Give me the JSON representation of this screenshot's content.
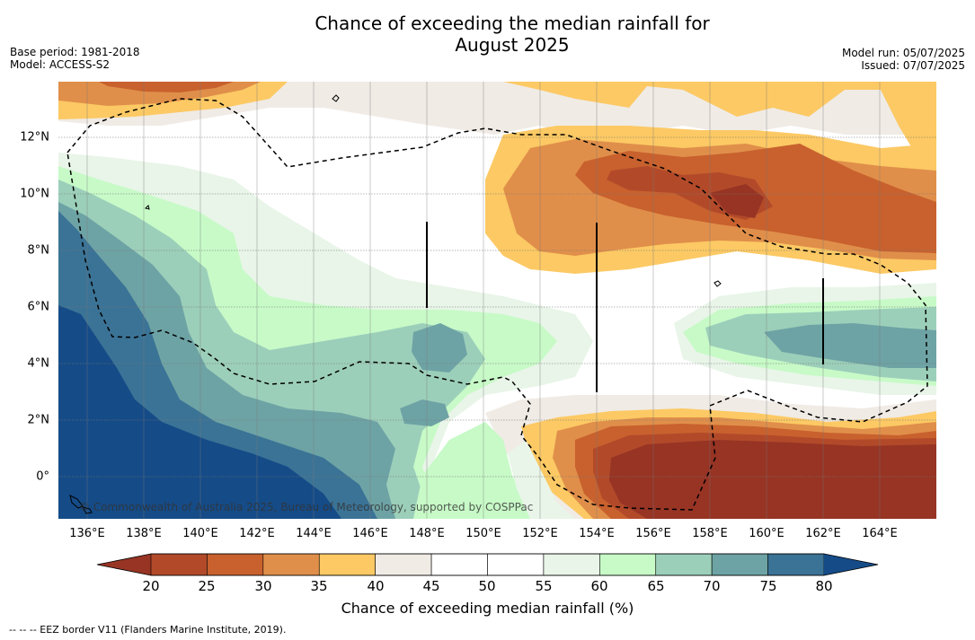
{
  "title_line1": "Chance of exceeding the median rainfall for",
  "title_line2": "August 2025",
  "meta": {
    "base_period": "Base period: 1981-2018",
    "model": "Model: ACCESS-S2",
    "model_run": "Model run: 05/07/2025",
    "issued": "Issued: 07/07/2025"
  },
  "map": {
    "x_ticks": [
      "136°E",
      "138°E",
      "140°E",
      "142°E",
      "144°E",
      "146°E",
      "148°E",
      "150°E",
      "152°E",
      "154°E",
      "156°E",
      "158°E",
      "160°E",
      "162°E",
      "164°E"
    ],
    "y_ticks": [
      "12°N",
      "10°N",
      "8°N",
      "6°N",
      "4°N",
      "2°N",
      "0°"
    ],
    "copyright": "© Commonwealth of Australia 2025, Bureau of Meteorology, supported by COSPPac"
  },
  "colorbar": {
    "ticks": [
      "20",
      "25",
      "30",
      "35",
      "40",
      "45",
      "50",
      "55",
      "60",
      "65",
      "70",
      "75",
      "80"
    ],
    "colors": [
      "#973424",
      "#b24a2a",
      "#c8612e",
      "#e08f4a",
      "#fcc964",
      "#f0ebe5",
      "#ffffff",
      "#ffffff",
      "#e8f5e8",
      "#c7fac7",
      "#9ccfba",
      "#6ea3a5",
      "#3b7396",
      "#154b87"
    ],
    "label": "Chance of exceeding median rainfall (%)"
  },
  "footnote": "--  --  -- EEZ border V11 (Flanders Marine Institute, 2019)."
}
